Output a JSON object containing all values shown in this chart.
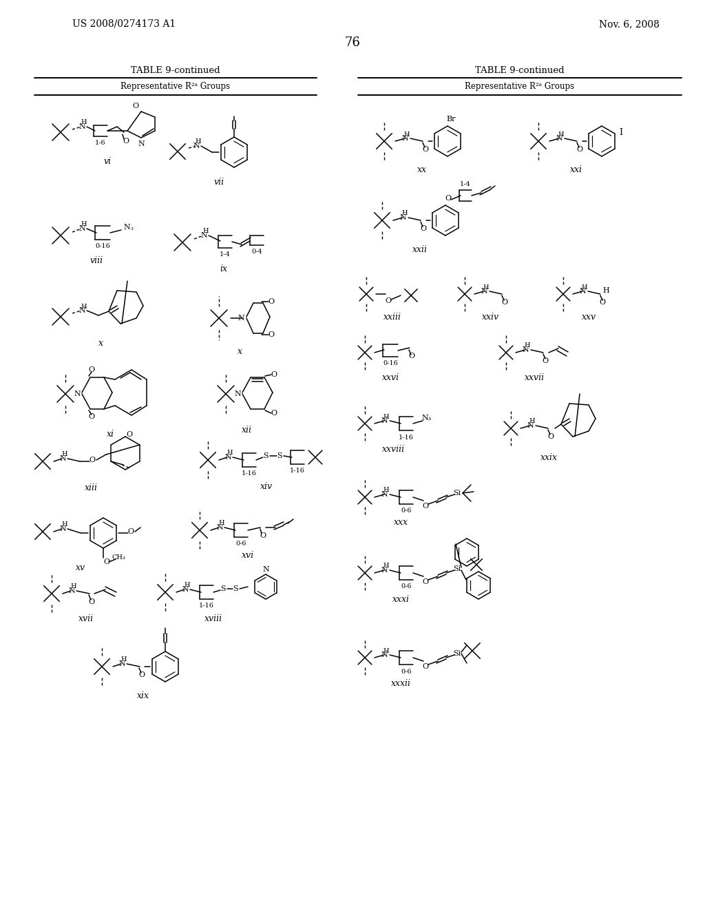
{
  "patent_number": "US 2008/0274173 A1",
  "patent_date": "Nov. 6, 2008",
  "page_number": "76",
  "table_title": "TABLE 9-continued",
  "column_header": "Representative R²ᵃ Groups",
  "background": "#ffffff",
  "figsize": [
    10.24,
    13.2
  ],
  "dpi": 100
}
